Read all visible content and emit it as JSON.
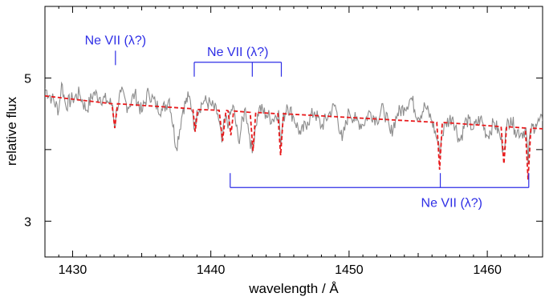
{
  "chart_data": {
    "type": "line",
    "xlabel": "wavelength / Å",
    "ylabel": "relative flux",
    "xlim": [
      1428,
      1464
    ],
    "ylim": [
      2.5,
      6.0
    ],
    "x_ticks": [
      1430,
      1440,
      1450,
      1460
    ],
    "x_tick_labels": [
      "1430",
      "1440",
      "1450",
      "1460"
    ],
    "y_ticks": [
      3,
      4,
      5
    ],
    "y_tick_labels": [
      "3",
      "",
      "5"
    ],
    "grid": false,
    "legend": "none",
    "series": [
      {
        "style": "observed",
        "color": "#8c8c8c",
        "x": [
          1428.0,
          1428.5,
          1429.0,
          1429.2,
          1429.5,
          1430.0,
          1430.5,
          1431.0,
          1431.5,
          1432.0,
          1432.5,
          1432.9,
          1433.05,
          1433.2,
          1433.5,
          1434.0,
          1434.5,
          1435.0,
          1435.5,
          1436.0,
          1436.5,
          1437.0,
          1437.5,
          1438.0,
          1438.4,
          1438.7,
          1438.85,
          1439.0,
          1439.5,
          1440.0,
          1440.5,
          1440.8,
          1441.0,
          1441.3,
          1441.6,
          1442.0,
          1442.5,
          1442.8,
          1443.0,
          1443.2,
          1443.5,
          1444.0,
          1444.5,
          1444.9,
          1445.05,
          1445.2,
          1445.5,
          1446.0,
          1446.5,
          1447.0,
          1447.5,
          1448.0,
          1448.5,
          1449.0,
          1449.5,
          1450.0,
          1450.5,
          1451.0,
          1451.5,
          1452.0,
          1452.5,
          1453.0,
          1453.5,
          1454.0,
          1454.5,
          1455.0,
          1455.5,
          1456.0,
          1456.4,
          1456.55,
          1456.7,
          1457.0,
          1457.5,
          1458.0,
          1458.5,
          1459.0,
          1459.5,
          1460.0,
          1460.5,
          1460.9,
          1461.15,
          1461.4,
          1461.7,
          1462.0,
          1462.5,
          1462.8,
          1462.95,
          1463.1,
          1463.5,
          1464.0
        ],
        "y": [
          4.85,
          4.72,
          4.55,
          4.93,
          4.62,
          4.71,
          4.78,
          4.55,
          4.79,
          4.73,
          4.68,
          4.62,
          4.3,
          4.58,
          4.8,
          4.59,
          4.78,
          4.52,
          4.81,
          4.63,
          4.55,
          4.71,
          4.02,
          4.58,
          4.74,
          4.52,
          4.25,
          4.55,
          4.68,
          4.63,
          4.5,
          4.1,
          4.42,
          4.38,
          4.62,
          4.12,
          4.58,
          4.2,
          3.95,
          4.3,
          4.58,
          4.49,
          4.42,
          4.55,
          4.05,
          4.38,
          4.63,
          4.45,
          4.21,
          4.39,
          4.53,
          4.32,
          4.48,
          4.62,
          4.12,
          4.54,
          4.4,
          4.35,
          4.53,
          4.42,
          4.58,
          4.22,
          4.5,
          4.59,
          4.72,
          4.45,
          4.61,
          4.4,
          4.12,
          3.95,
          4.18,
          4.37,
          4.46,
          4.12,
          4.42,
          4.29,
          4.44,
          4.19,
          4.38,
          4.21,
          4.0,
          4.32,
          4.45,
          4.28,
          4.23,
          4.3,
          3.8,
          4.25,
          4.36,
          4.4
        ]
      },
      {
        "style": "model",
        "color": "#e8191b",
        "x": [
          1428.0,
          1432.85,
          1433.05,
          1433.25,
          1438.7,
          1438.87,
          1439.05,
          1440.6,
          1440.85,
          1441.1,
          1441.25,
          1441.45,
          1441.65,
          1442.85,
          1443.05,
          1443.25,
          1444.85,
          1445.05,
          1445.25,
          1456.35,
          1456.55,
          1456.75,
          1461.0,
          1461.2,
          1461.4,
          1462.75,
          1462.95,
          1463.15,
          1464.0
        ],
        "y": [
          4.75,
          4.64,
          4.3,
          4.64,
          4.57,
          4.25,
          4.56,
          4.55,
          4.12,
          4.55,
          4.54,
          4.2,
          4.54,
          4.52,
          3.98,
          4.52,
          4.5,
          3.92,
          4.5,
          4.38,
          3.72,
          4.38,
          4.32,
          3.8,
          4.32,
          4.3,
          3.58,
          4.3,
          4.29
        ]
      }
    ],
    "line_id_annotations": [
      {
        "label": "Ne VII (λ?)",
        "wavelengths": [
          1433.1
        ],
        "side": "above",
        "level": 5.18
      },
      {
        "label": "Ne VII (λ?)",
        "wavelengths": [
          1438.8,
          1443.0,
          1445.1
        ],
        "side": "above",
        "level": 5.22
      },
      {
        "label": "Ne VII (λ?)",
        "wavelengths": [
          1441.4,
          1456.6,
          1463.0
        ],
        "side": "below",
        "level": 3.47
      }
    ],
    "annotation_color": "#2e2ee6"
  }
}
